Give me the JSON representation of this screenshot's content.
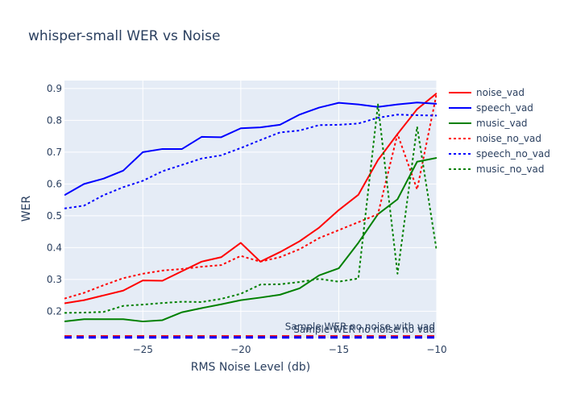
{
  "chart_data": {
    "type": "line",
    "title": "whisper-small WER vs Noise",
    "xlabel": "RMS Noise Level (db)",
    "ylabel": "WER",
    "xlim": [
      -29,
      -10
    ],
    "ylim": [
      0.115,
      0.925
    ],
    "x_ticks": [
      -25,
      -20,
      -15,
      -10
    ],
    "y_ticks": [
      0.2,
      0.3,
      0.4,
      0.5,
      0.6,
      0.7,
      0.8,
      0.9
    ],
    "x_tick_labels": [
      "−25",
      "−20",
      "−15",
      "−10"
    ],
    "y_tick_labels": [
      "0.2",
      "0.3",
      "0.4",
      "0.5",
      "0.6",
      "0.7",
      "0.8",
      "0.9"
    ],
    "grid": true,
    "legend_position": "right",
    "x": [
      -29,
      -28,
      -27,
      -26,
      -25,
      -24,
      -23,
      -22,
      -21,
      -20,
      -19,
      -18,
      -17,
      -16,
      -15,
      -14,
      -13,
      -12,
      -11,
      -10
    ],
    "series": [
      {
        "name": "noise_vad",
        "color": "#ff0000",
        "dash": "solid",
        "values": [
          0.225,
          0.235,
          0.25,
          0.265,
          0.297,
          0.296,
          0.326,
          0.356,
          0.37,
          0.415,
          0.356,
          0.386,
          0.42,
          0.463,
          0.518,
          0.566,
          0.675,
          0.757,
          0.835,
          0.885
        ]
      },
      {
        "name": "speech_vad",
        "color": "#0000ff",
        "dash": "solid",
        "values": [
          0.565,
          0.6,
          0.617,
          0.642,
          0.7,
          0.71,
          0.71,
          0.748,
          0.747,
          0.775,
          0.778,
          0.786,
          0.818,
          0.84,
          0.855,
          0.85,
          0.842,
          0.85,
          0.856,
          0.852
        ]
      },
      {
        "name": "music_vad",
        "color": "#008000",
        "dash": "solid",
        "values": [
          0.168,
          0.175,
          0.175,
          0.175,
          0.168,
          0.172,
          0.197,
          0.21,
          0.222,
          0.235,
          0.243,
          0.252,
          0.272,
          0.313,
          0.335,
          0.415,
          0.505,
          0.552,
          0.67,
          0.682
        ]
      },
      {
        "name": "noise_no_vad",
        "color": "#ff0000",
        "dash": "dot",
        "values": [
          0.24,
          0.258,
          0.282,
          0.304,
          0.318,
          0.328,
          0.333,
          0.34,
          0.345,
          0.374,
          0.356,
          0.37,
          0.395,
          0.43,
          0.455,
          0.48,
          0.505,
          0.757,
          0.583,
          0.885
        ]
      },
      {
        "name": "speech_no_vad",
        "color": "#0000ff",
        "dash": "dot",
        "values": [
          0.523,
          0.532,
          0.565,
          0.59,
          0.61,
          0.64,
          0.66,
          0.68,
          0.69,
          0.713,
          0.738,
          0.762,
          0.768,
          0.785,
          0.786,
          0.79,
          0.808,
          0.818,
          0.816,
          0.815
        ]
      },
      {
        "name": "music_no_vad",
        "color": "#008000",
        "dash": "dot",
        "values": [
          0.195,
          0.196,
          0.198,
          0.217,
          0.221,
          0.226,
          0.23,
          0.229,
          0.239,
          0.255,
          0.284,
          0.285,
          0.292,
          0.302,
          0.293,
          0.303,
          0.85,
          0.318,
          0.78,
          0.39
        ]
      }
    ],
    "reference_lines": [
      {
        "label": "Sample WER no noise with vad",
        "y": 0.121,
        "color": "#ff0000",
        "dash": "dash"
      },
      {
        "label": "Sample WER no noise no vad",
        "y": 0.118,
        "color": "#0000ff",
        "dash": "dash"
      }
    ]
  }
}
